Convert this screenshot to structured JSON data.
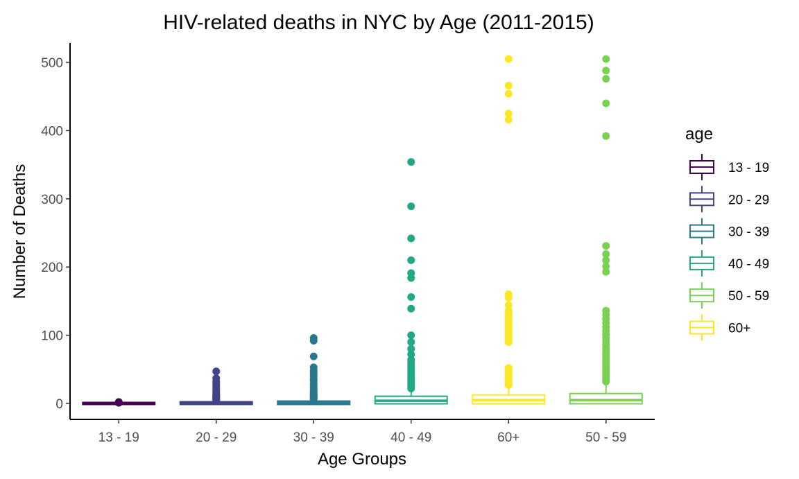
{
  "chart_data": {
    "type": "box",
    "title": "HIV-related deaths in NYC by Age (2011-2015)",
    "xlabel": "Age Groups",
    "ylabel": "Number of Deaths",
    "ylim": [
      -20,
      525
    ],
    "yticks": [
      0,
      100,
      200,
      300,
      400,
      500
    ],
    "grid": false,
    "legend": {
      "title": "age",
      "position": "right",
      "entries": [
        {
          "label": "13 - 19",
          "color": "#440154"
        },
        {
          "label": "20 - 29",
          "color": "#414487"
        },
        {
          "label": "30 - 39",
          "color": "#2a788e"
        },
        {
          "label": "40 - 49",
          "color": "#22a884"
        },
        {
          "label": "50 - 59",
          "color": "#7ad151"
        },
        {
          "label": "60+",
          "color": "#fde725"
        }
      ]
    },
    "categories": [
      "13 - 19",
      "20 - 29",
      "30 - 39",
      "40 - 49",
      "60+",
      "50 - 59"
    ],
    "boxes": [
      {
        "category": "13 - 19",
        "color": "#440154",
        "min": 0,
        "q1": 0,
        "median": 0,
        "q3": 0,
        "max": 0,
        "outliers": [
          1,
          1,
          2,
          2
        ]
      },
      {
        "category": "20 - 29",
        "color": "#414487",
        "min": 0,
        "q1": 0,
        "median": 0,
        "q3": 1,
        "max": 2,
        "outliers": [
          3,
          4,
          5,
          6,
          7,
          8,
          9,
          10,
          11,
          12,
          14,
          16,
          18,
          22,
          25,
          28,
          32,
          37,
          47
        ]
      },
      {
        "category": "30 - 39",
        "color": "#2a788e",
        "min": 0,
        "q1": 0,
        "median": 1,
        "q3": 2,
        "max": 5,
        "outliers": [
          6,
          7,
          8,
          9,
          10,
          11,
          12,
          14,
          16,
          18,
          20,
          24,
          28,
          33,
          36,
          40,
          44,
          48,
          53,
          69,
          92,
          96
        ]
      },
      {
        "category": "40 - 49",
        "color": "#22a884",
        "min": 0,
        "q1": 1,
        "median": 4,
        "q3": 9,
        "max": 20,
        "outliers": [
          22,
          25,
          28,
          31,
          34,
          37,
          40,
          44,
          48,
          52,
          56,
          60,
          64,
          72,
          80,
          90,
          100,
          139,
          156,
          184,
          191,
          210,
          242,
          289,
          354
        ]
      },
      {
        "category": "60+",
        "color": "#fde725",
        "min": 0,
        "q1": 1,
        "median": 5,
        "q3": 11,
        "max": 25,
        "outliers": [
          27,
          29,
          31,
          33,
          35,
          37,
          40,
          44,
          48,
          52,
          90,
          93,
          96,
          100,
          104,
          108,
          112,
          116,
          121,
          126,
          131,
          136,
          144,
          155,
          160,
          416,
          425,
          454,
          466,
          505
        ]
      },
      {
        "category": "50 - 59",
        "color": "#7ad151",
        "min": 0,
        "q1": 1,
        "median": 5,
        "q3": 13,
        "max": 30,
        "outliers": [
          32,
          35,
          38,
          41,
          44,
          48,
          52,
          56,
          60,
          64,
          68,
          72,
          76,
          81,
          86,
          91,
          96,
          101,
          106,
          112,
          118,
          124,
          130,
          136,
          193,
          201,
          210,
          219,
          231,
          392,
          440,
          476,
          488,
          505
        ]
      }
    ]
  }
}
